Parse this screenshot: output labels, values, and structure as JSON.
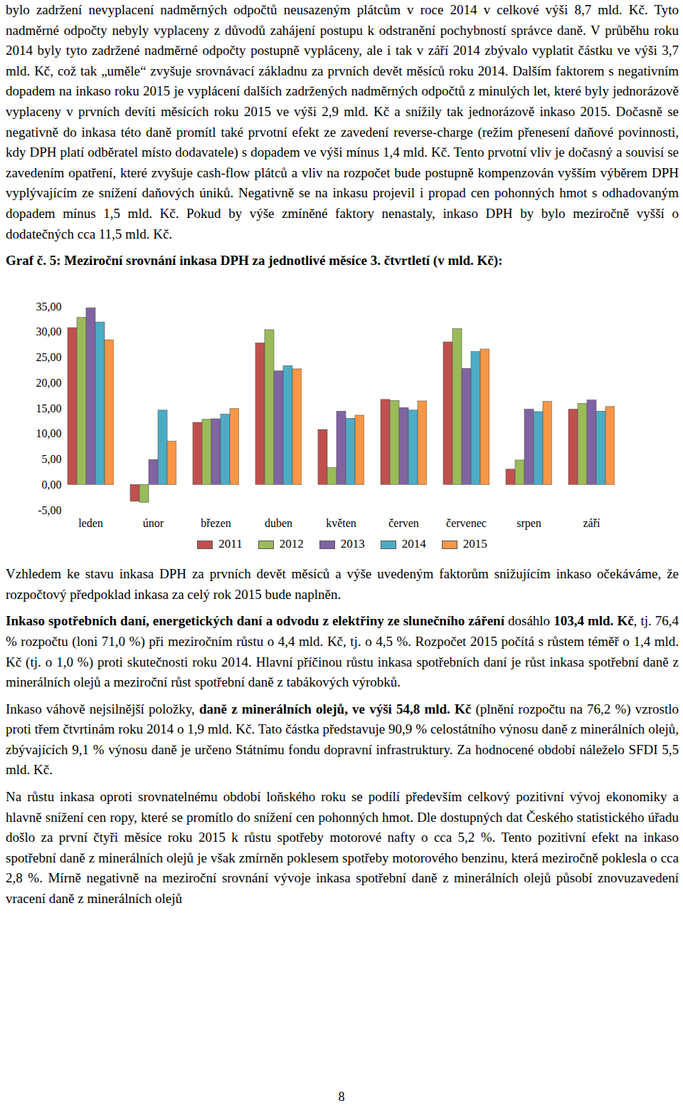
{
  "document": {
    "paragraphs_before": [
      [
        {
          "text": "bylo zadržení nevyplacení nadměrných odpočtů neusazeným plátcům v roce 2014 v celkové výši 8,7 mld. Kč. Tyto nadměrné odpočty nebyly vyplaceny z důvodů zahájení postupu k odstranění pochybností správce daně. V průběhu roku 2014 byly tyto zadržené nadměrné odpočty postupně vypláceny, ale i tak v září 2014 zbývalo vyplatit částku ve výši 3,7 mld. Kč, což tak „uměle“ zvyšuje srovnávací základnu za prvních devět měsíců roku 2014. Dalším faktorem s negativním dopadem na inkaso roku 2015 je vyplácení dalších zadržených nadměrných odpočtů z minulých let, které byly jednorázově vyplaceny v prvních devíti měsících roku 2015 ve výši 2,9 mld. Kč a snížily tak jednorázově inkaso 2015. Dočasně se negativně do inkasa této daně promítl také prvotní efekt ze zavedení reverse-charge (režim přenesení daňové povinnosti, kdy DPH platí odběratel místo dodavatele) s dopadem ve výši mínus 1,4 mld. Kč. Tento prvotní vliv je dočasný a souvisí se zavedením opatření, které zvyšuje cash-flow plátců a vliv na rozpočet bude postupně kompenzován vyšším výběrem DPH vyplývajícím ze snížení daňových úniků. Negativně se na inkasu projevil i propad cen pohonných hmot s odhadovaným dopadem mínus 1,5 mld. Kč. Pokud by výše zmíněné faktory nenastaly, inkaso DPH by bylo meziročně vyšší o dodatečných cca 11,5 mld. Kč."
        }
      ]
    ],
    "paragraphs_after": [
      [
        {
          "text": "Vzhledem ke stavu inkasa DPH za prvních devět měsíců a výše uvedeným faktorům snižujícím inkaso očekáváme, že rozpočtový předpoklad inkasa za celý rok 2015 bude naplněn."
        }
      ],
      [
        {
          "text": "Inkaso spotřebních daní, energetických daní a odvodu z elektřiny ze slunečního záření",
          "bold": true
        },
        {
          "text": " dosáhlo "
        },
        {
          "text": "103,4 mld. Kč",
          "bold": true
        },
        {
          "text": ", tj. 76,4 % rozpočtu (loni 71,0 %) při meziročním růstu o 4,4 mld. Kč, tj. o 4,5 %. Rozpočet 2015 počítá s růstem téměř o 1,4 mld. Kč (tj. o 1,0 %) proti skutečnosti roku 2014. Hlavní příčinou růstu inkasa spotřebních daní je růst inkasa spotřební daně z minerálních olejů a meziroční růst spotřební daně z tabákových výrobků."
        }
      ],
      [
        {
          "text": "Inkaso váhově nejsilnější položky, "
        },
        {
          "text": "daně z minerálních olejů, ve výši 54,8 mld. Kč",
          "bold": true
        },
        {
          "text": " (plnění rozpočtu na 76,2 %) vzrostlo proti třem čtvrtinám roku 2014 o 1,9 mld. Kč. Tato částka představuje 90,9 % celostátního výnosu daně z minerálních olejů, zbývajících 9,1 % výnosu daně je určeno Státnímu fondu dopravní infrastruktury. Za hodnocené období náleželo SFDI 5,5 mld. Kč."
        }
      ],
      [
        {
          "text": "Na růstu inkasa oproti srovnatelnému období loňského roku se podílí především celkový pozitivní vývoj ekonomiky a hlavně snížení cen ropy, které se promítlo do snížení cen pohonných hmot. Dle dostupných dat Českého statistického úřadu došlo za první čtyři měsíce roku 2015 k růstu spotřeby motorové nafty o cca 5,2 %. Tento pozitivní efekt na inkaso spotřební daně z minerálních olejů je však zmírněn poklesem spotřeby motorového benzinu, která meziročně poklesla o cca 2,8 %. Mírně negativně na meziroční srovnání vývoje inkasa spotřební daně z minerálních olejů působí znovuzavedení vracení daně z minerálních olejů"
        }
      ]
    ],
    "page_number": "8"
  },
  "chart_data": {
    "type": "bar",
    "title": "Graf č. 5: Meziroční srovnání inkasa DPH za jednotlivé měsíce 3. čtvrtletí (v mld. Kč):",
    "categories": [
      "leden",
      "únor",
      "březen",
      "duben",
      "květen",
      "červen",
      "červenec",
      "srpen",
      "září"
    ],
    "series": [
      {
        "name": "2011",
        "color": "#c0504d",
        "values": [
          30.8,
          -3.3,
          12.2,
          27.8,
          10.8,
          16.7,
          28.0,
          3.0,
          14.8
        ]
      },
      {
        "name": "2012",
        "color": "#9bbb59",
        "values": [
          32.8,
          -3.5,
          12.8,
          30.4,
          3.3,
          16.5,
          30.6,
          4.8,
          15.9
        ]
      },
      {
        "name": "2013",
        "color": "#8064a2",
        "values": [
          34.7,
          4.9,
          12.9,
          22.3,
          14.4,
          15.1,
          22.8,
          14.8,
          16.6
        ]
      },
      {
        "name": "2014",
        "color": "#4bacc6",
        "values": [
          31.9,
          14.6,
          13.8,
          23.3,
          13.0,
          14.6,
          26.1,
          14.3,
          14.4
        ]
      },
      {
        "name": "2015",
        "color": "#f79646",
        "values": [
          28.4,
          8.5,
          14.9,
          22.7,
          13.6,
          16.4,
          26.6,
          16.3,
          15.3
        ]
      }
    ],
    "ylim": [
      -5,
      35
    ],
    "yticks": [
      {
        "value": -5,
        "label": "-5,00"
      },
      {
        "value": 0,
        "label": "0,00"
      },
      {
        "value": 5,
        "label": "5,00"
      },
      {
        "value": 10,
        "label": "10,00"
      },
      {
        "value": 15,
        "label": "15,00"
      },
      {
        "value": 20,
        "label": "20,00"
      },
      {
        "value": 25,
        "label": "25,00"
      },
      {
        "value": 30,
        "label": "30,00"
      },
      {
        "value": 35,
        "label": "35,00"
      }
    ],
    "grid": false,
    "legend": "bottom"
  }
}
